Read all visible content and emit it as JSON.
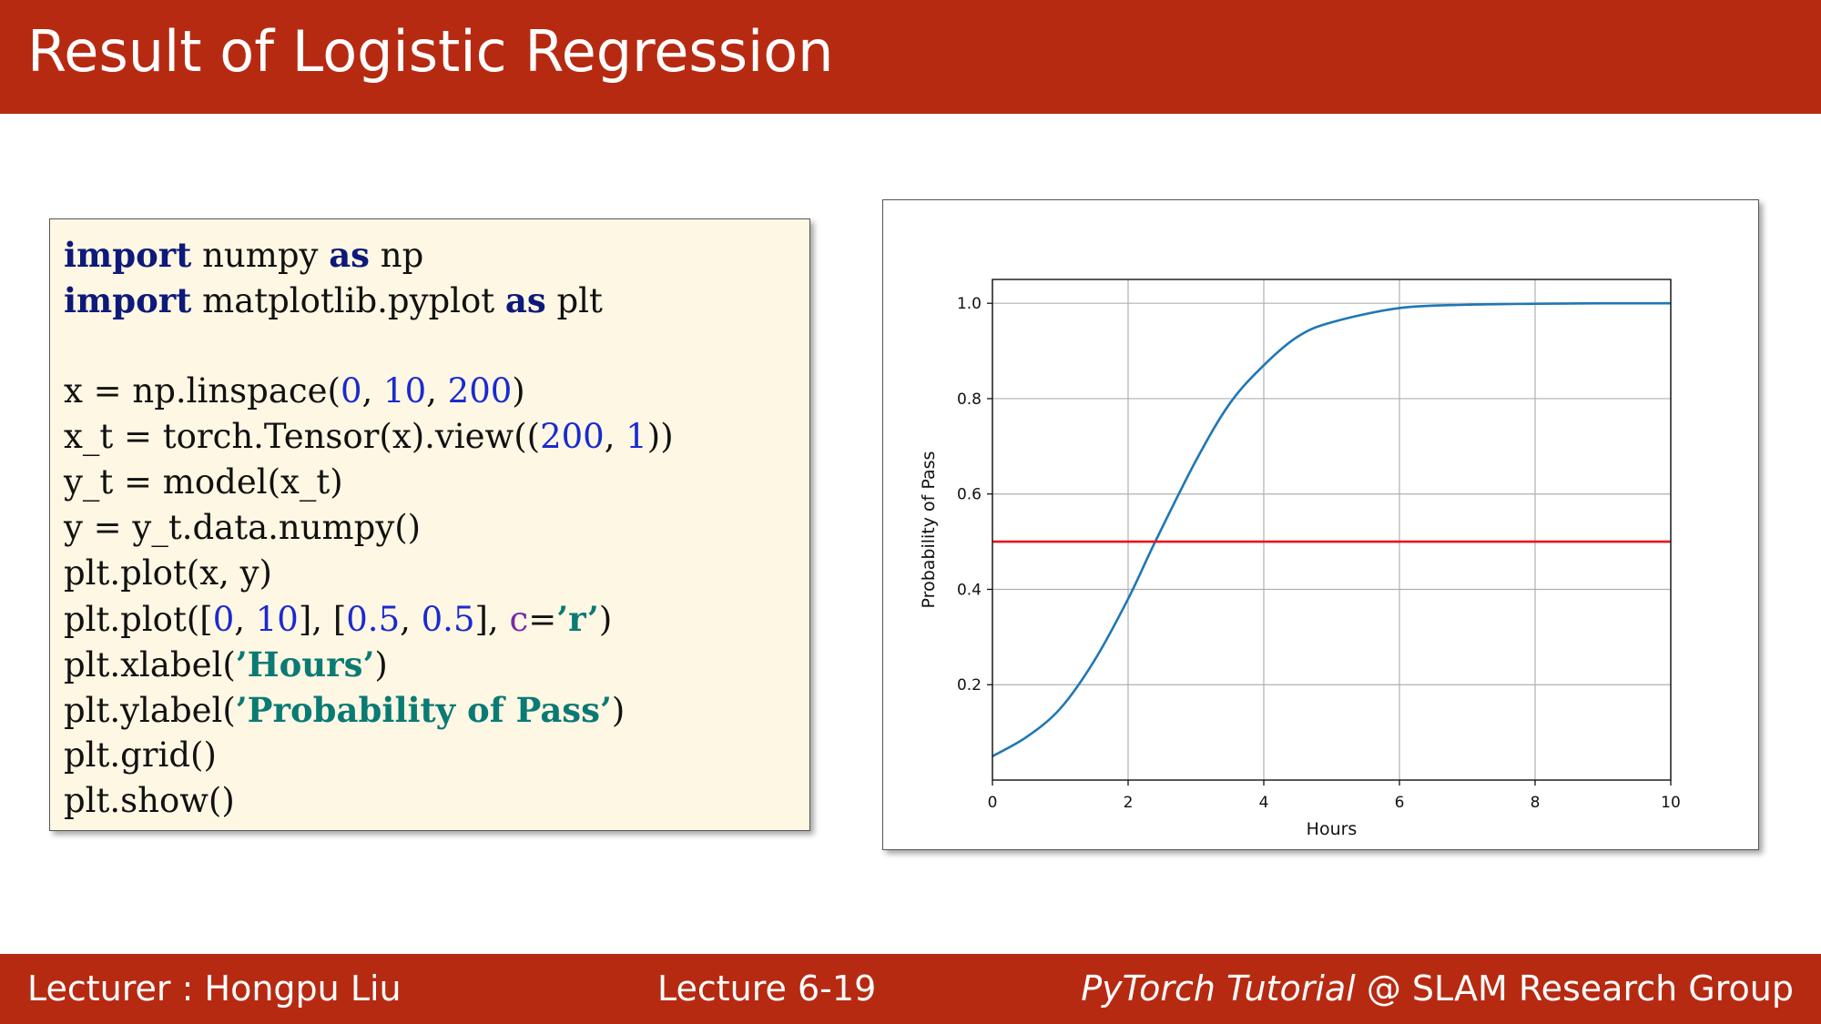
{
  "header": {
    "title": "Result of Logistic Regression"
  },
  "code": {
    "lines": [
      [
        {
          "t": "import",
          "c": "kw"
        },
        {
          "t": " numpy ",
          "c": ""
        },
        {
          "t": "as",
          "c": "kw"
        },
        {
          "t": " np",
          "c": ""
        }
      ],
      [
        {
          "t": "import",
          "c": "kw"
        },
        {
          "t": " matplotlib.pyplot ",
          "c": ""
        },
        {
          "t": "as",
          "c": "kw"
        },
        {
          "t": " plt",
          "c": ""
        }
      ],
      [],
      [
        {
          "t": "x = np.linspace(",
          "c": ""
        },
        {
          "t": "0",
          "c": "num"
        },
        {
          "t": ", ",
          "c": ""
        },
        {
          "t": "10",
          "c": "num"
        },
        {
          "t": ", ",
          "c": ""
        },
        {
          "t": "200",
          "c": "num"
        },
        {
          "t": ")",
          "c": ""
        }
      ],
      [
        {
          "t": "x_t = torch.Tensor(x).view((",
          "c": ""
        },
        {
          "t": "200",
          "c": "num"
        },
        {
          "t": ", ",
          "c": ""
        },
        {
          "t": "1",
          "c": "num"
        },
        {
          "t": "))",
          "c": ""
        }
      ],
      [
        {
          "t": "y_t = model(x_t)",
          "c": ""
        }
      ],
      [
        {
          "t": "y = y_t.data.numpy()",
          "c": ""
        }
      ],
      [
        {
          "t": "plt.plot(x, y)",
          "c": ""
        }
      ],
      [
        {
          "t": "plt.plot([",
          "c": ""
        },
        {
          "t": "0",
          "c": "num"
        },
        {
          "t": ", ",
          "c": ""
        },
        {
          "t": "10",
          "c": "num"
        },
        {
          "t": "], [",
          "c": ""
        },
        {
          "t": "0.5",
          "c": "num"
        },
        {
          "t": ", ",
          "c": ""
        },
        {
          "t": "0.5",
          "c": "num"
        },
        {
          "t": "], ",
          "c": ""
        },
        {
          "t": "c",
          "c": "arg"
        },
        {
          "t": "=",
          "c": ""
        },
        {
          "t": "’r’",
          "c": "str"
        },
        {
          "t": ")",
          "c": ""
        }
      ],
      [
        {
          "t": "plt.xlabel(",
          "c": ""
        },
        {
          "t": "’Hours’",
          "c": "str"
        },
        {
          "t": ")",
          "c": ""
        }
      ],
      [
        {
          "t": "plt.ylabel(",
          "c": ""
        },
        {
          "t": "’Probability of Pass’",
          "c": "str"
        },
        {
          "t": ")",
          "c": ""
        }
      ],
      [
        {
          "t": "plt.grid()",
          "c": ""
        }
      ],
      [
        {
          "t": "plt.show()",
          "c": ""
        }
      ]
    ]
  },
  "chart_data": {
    "type": "line",
    "xlabel": "Hours",
    "ylabel": "Probability of Pass",
    "xlim": [
      0,
      10
    ],
    "ylim": [
      0,
      1.05
    ],
    "xticks": [
      0,
      2,
      4,
      6,
      8,
      10
    ],
    "yticks": [
      0.2,
      0.4,
      0.6,
      0.8,
      1.0
    ],
    "xtick_labels": [
      "0",
      "2",
      "4",
      "6",
      "8",
      "10"
    ],
    "ytick_labels": [
      "0.2",
      "0.4",
      "0.6",
      "0.8",
      "1.0"
    ],
    "grid": true,
    "series": [
      {
        "color": "#1f77b4",
        "x": [
          0,
          0.5,
          1,
          1.5,
          2,
          2.4,
          3,
          3.5,
          4,
          4.5,
          5,
          6,
          7,
          8,
          9,
          10
        ],
        "y": [
          0.05,
          0.09,
          0.15,
          0.25,
          0.38,
          0.5,
          0.67,
          0.79,
          0.87,
          0.93,
          0.96,
          0.99,
          0.997,
          0.999,
          1.0,
          1.0
        ]
      },
      {
        "color": "#e8141c",
        "x": [
          0,
          10
        ],
        "y": [
          0.5,
          0.5
        ]
      }
    ]
  },
  "footer": {
    "lecturer": "Lecturer : Hongpu Liu",
    "lecture": "Lecture 6-19",
    "course_italic": "PyTorch Tutorial",
    "course_rest": " @ SLAM Research Group"
  }
}
